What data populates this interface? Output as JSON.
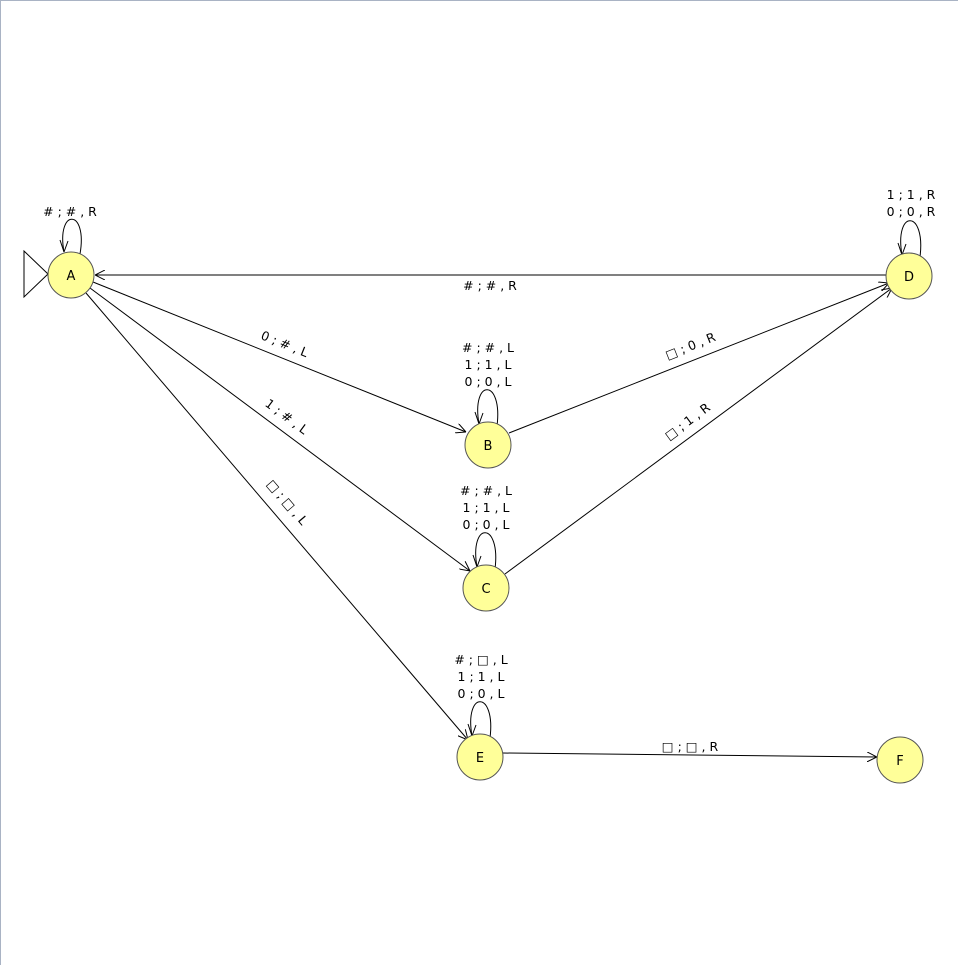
{
  "states": [
    {
      "id": "A",
      "label": "A",
      "initial": true
    },
    {
      "id": "B",
      "label": "B"
    },
    {
      "id": "C",
      "label": "C"
    },
    {
      "id": "D",
      "label": "D"
    },
    {
      "id": "E",
      "label": "E"
    },
    {
      "id": "F",
      "label": "F"
    }
  ],
  "transitions": {
    "A_A": [
      "# ; # , R"
    ],
    "A_B": [
      "0 ; # , L"
    ],
    "A_C": [
      "1 ; # , L"
    ],
    "A_E": [
      "□ ; □ , L"
    ],
    "B_B": [
      "# ; # , L",
      "1 ; 1 , L",
      "0 ; 0 , L"
    ],
    "B_D": [
      "□ ; 0 , R"
    ],
    "C_C": [
      "# ; # , L",
      "1 ; 1 , L",
      "0 ; 0 , L"
    ],
    "C_D": [
      "□ ; 1 , R"
    ],
    "D_D": [
      "1 ; 1 , R",
      "0 ; 0 , R"
    ],
    "D_A": [
      "# ; # , R"
    ],
    "E_E": [
      "# ; □ , L",
      "1 ; 1 , L",
      "0 ; 0 , L"
    ],
    "E_F": [
      "□ ; □ , R"
    ]
  },
  "colors": {
    "state_fill": "#ffff99",
    "state_stroke": "#555555",
    "edge": "#000000"
  }
}
